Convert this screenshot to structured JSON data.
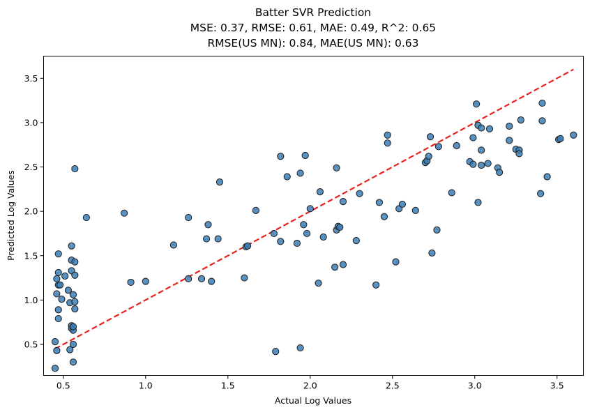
{
  "chart_data": {
    "type": "scatter",
    "title_lines": [
      "Batter SVR Prediction",
      "MSE: 0.37, RMSE: 0.61, MAE: 0.49, R^2: 0.65",
      "RMSE(US MN): 0.84, MAE(US MN): 0.63"
    ],
    "xlabel": "Actual Log Values",
    "ylabel": "Predicted Log Values",
    "xlim": [
      0.38,
      3.66
    ],
    "ylim": [
      0.15,
      3.75
    ],
    "x_ticks": [
      0.5,
      1.0,
      1.5,
      2.0,
      2.5,
      3.0,
      3.5
    ],
    "x_tick_labels": [
      "0.5",
      "1.0",
      "1.5",
      "2.0",
      "2.5",
      "3.0",
      "3.5"
    ],
    "y_ticks": [
      0.5,
      1.0,
      1.5,
      2.0,
      2.5,
      3.0,
      3.5
    ],
    "y_tick_labels": [
      "0.5",
      "1.0",
      "1.5",
      "2.0",
      "2.5",
      "3.0",
      "3.5"
    ],
    "grid": false,
    "reference_line": {
      "x": [
        0.45,
        3.6
      ],
      "y": [
        0.45,
        3.6
      ],
      "color": "#e8211c",
      "style": "dashed"
    },
    "marker_color": "#3b7db5",
    "marker_edge_color": "#1c1c1c",
    "points": [
      [
        0.45,
        0.23
      ],
      [
        0.45,
        0.53
      ],
      [
        0.46,
        0.43
      ],
      [
        0.46,
        1.07
      ],
      [
        0.46,
        1.24
      ],
      [
        0.47,
        1.52
      ],
      [
        0.47,
        0.79
      ],
      [
        0.47,
        0.89
      ],
      [
        0.47,
        1.31
      ],
      [
        0.47,
        1.17
      ],
      [
        0.48,
        1.17
      ],
      [
        0.49,
        1.01
      ],
      [
        0.51,
        1.27
      ],
      [
        0.53,
        1.11
      ],
      [
        0.54,
        0.97
      ],
      [
        0.54,
        0.44
      ],
      [
        0.55,
        0.71
      ],
      [
        0.55,
        0.68
      ],
      [
        0.55,
        1.45
      ],
      [
        0.55,
        1.61
      ],
      [
        0.55,
        1.33
      ],
      [
        0.56,
        0.66
      ],
      [
        0.56,
        0.7
      ],
      [
        0.56,
        0.5
      ],
      [
        0.56,
        0.3
      ],
      [
        0.56,
        1.06
      ],
      [
        0.57,
        1.43
      ],
      [
        0.57,
        1.28
      ],
      [
        0.57,
        0.98
      ],
      [
        0.57,
        0.9
      ],
      [
        0.57,
        2.48
      ],
      [
        0.64,
        1.93
      ],
      [
        0.87,
        1.98
      ],
      [
        0.91,
        1.2
      ],
      [
        1.0,
        1.21
      ],
      [
        1.17,
        1.62
      ],
      [
        1.26,
        1.93
      ],
      [
        1.26,
        1.24
      ],
      [
        1.34,
        1.24
      ],
      [
        1.37,
        1.69
      ],
      [
        1.38,
        1.85
      ],
      [
        1.4,
        1.21
      ],
      [
        1.44,
        1.69
      ],
      [
        1.45,
        2.33
      ],
      [
        1.6,
        1.25
      ],
      [
        1.61,
        1.6
      ],
      [
        1.62,
        1.61
      ],
      [
        1.67,
        2.01
      ],
      [
        1.78,
        1.75
      ],
      [
        1.79,
        0.42
      ],
      [
        1.82,
        1.66
      ],
      [
        1.82,
        2.62
      ],
      [
        1.86,
        2.39
      ],
      [
        1.92,
        1.64
      ],
      [
        1.94,
        2.43
      ],
      [
        1.94,
        0.46
      ],
      [
        1.96,
        1.85
      ],
      [
        1.97,
        2.63
      ],
      [
        1.98,
        1.75
      ],
      [
        2.0,
        2.03
      ],
      [
        2.05,
        1.19
      ],
      [
        2.06,
        2.22
      ],
      [
        2.08,
        1.71
      ],
      [
        2.15,
        1.37
      ],
      [
        2.16,
        1.79
      ],
      [
        2.16,
        2.49
      ],
      [
        2.17,
        1.83
      ],
      [
        2.18,
        1.82
      ],
      [
        2.2,
        2.11
      ],
      [
        2.2,
        1.4
      ],
      [
        2.28,
        1.67
      ],
      [
        2.3,
        2.2
      ],
      [
        2.4,
        1.17
      ],
      [
        2.42,
        2.1
      ],
      [
        2.45,
        1.94
      ],
      [
        2.47,
        2.86
      ],
      [
        2.47,
        2.77
      ],
      [
        2.52,
        1.43
      ],
      [
        2.54,
        2.03
      ],
      [
        2.56,
        2.08
      ],
      [
        2.64,
        2.01
      ],
      [
        2.7,
        2.55
      ],
      [
        2.71,
        2.57
      ],
      [
        2.72,
        2.62
      ],
      [
        2.73,
        2.84
      ],
      [
        2.74,
        1.53
      ],
      [
        2.77,
        1.79
      ],
      [
        2.78,
        2.73
      ],
      [
        2.86,
        2.21
      ],
      [
        2.89,
        2.74
      ],
      [
        2.97,
        2.56
      ],
      [
        2.99,
        2.83
      ],
      [
        2.99,
        2.53
      ],
      [
        3.01,
        3.21
      ],
      [
        3.02,
        2.1
      ],
      [
        3.02,
        2.97
      ],
      [
        3.04,
        2.94
      ],
      [
        3.04,
        2.52
      ],
      [
        3.04,
        2.69
      ],
      [
        3.08,
        2.54
      ],
      [
        3.09,
        2.93
      ],
      [
        3.14,
        2.49
      ],
      [
        3.15,
        2.44
      ],
      [
        3.21,
        2.96
      ],
      [
        3.21,
        2.8
      ],
      [
        3.25,
        2.7
      ],
      [
        3.27,
        2.69
      ],
      [
        3.27,
        2.65
      ],
      [
        3.28,
        3.03
      ],
      [
        3.4,
        2.2
      ],
      [
        3.41,
        3.02
      ],
      [
        3.41,
        3.22
      ],
      [
        3.44,
        2.39
      ],
      [
        3.51,
        2.81
      ],
      [
        3.52,
        2.82
      ],
      [
        3.6,
        2.86
      ]
    ]
  }
}
